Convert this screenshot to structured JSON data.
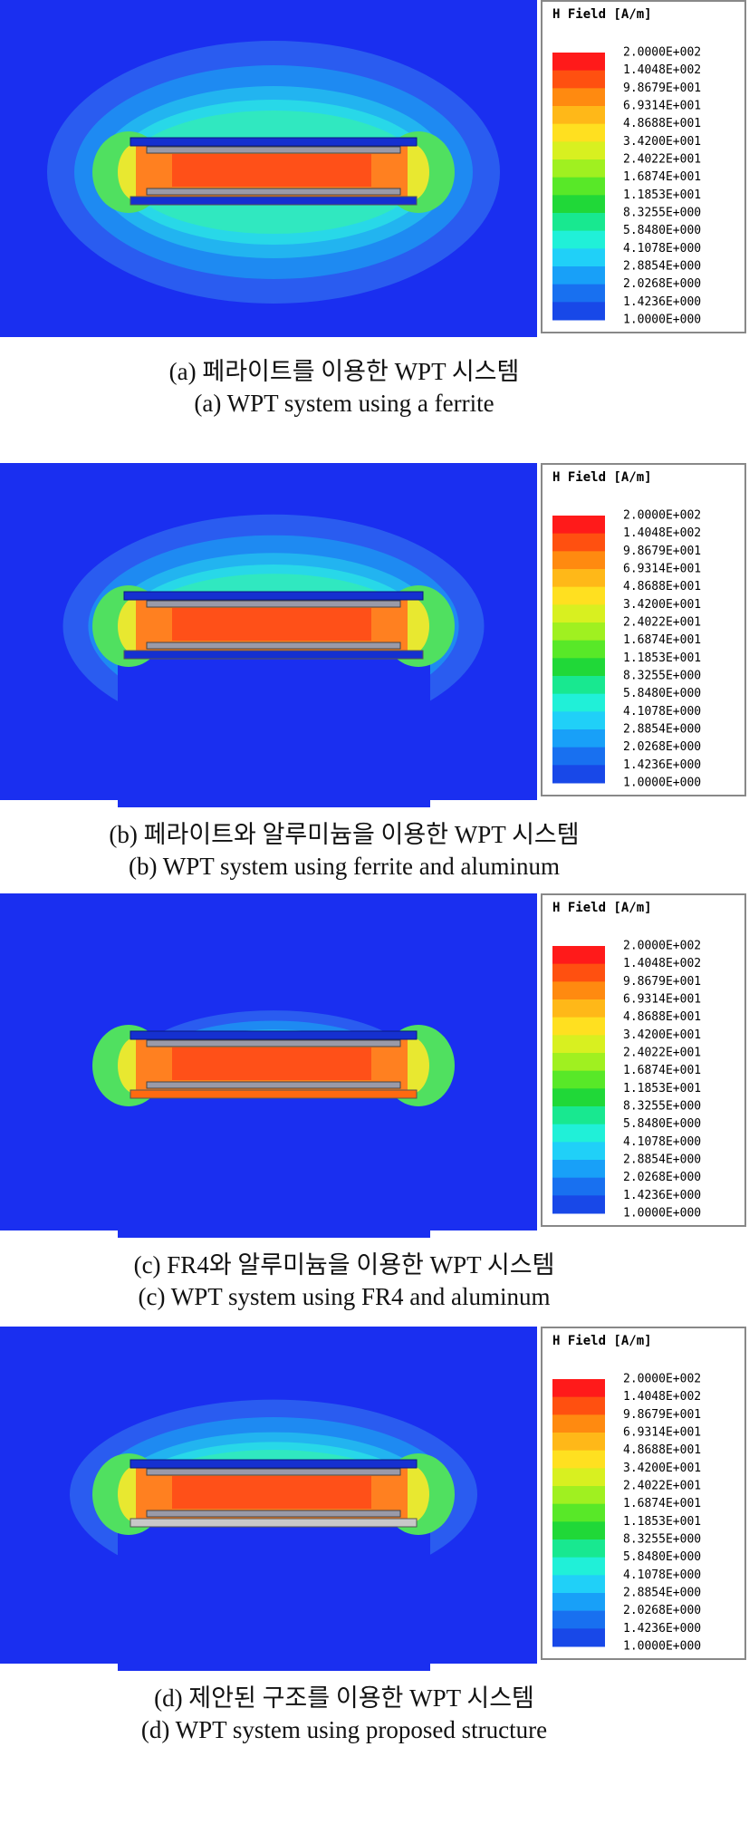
{
  "legend": {
    "title": "H Field [A/m]",
    "labels": [
      "2.0000E+002",
      "1.4048E+002",
      "9.8679E+001",
      "6.9314E+001",
      "4.8688E+001",
      "3.4200E+001",
      "2.4022E+001",
      "1.6874E+001",
      "1.1853E+001",
      "8.3255E+000",
      "5.8480E+000",
      "4.1078E+000",
      "2.8854E+000",
      "2.0268E+000",
      "1.4236E+000",
      "1.0000E+000"
    ]
  },
  "panels": [
    {
      "caption_ko": "(a) 페라이트를 이용한 WPT 시스템",
      "caption_en": "(a) WPT system using a ferrite"
    },
    {
      "caption_ko": "(b) 페라이트와 알루미늄을 이용한 WPT 시스템",
      "caption_en": "(b) WPT system using ferrite and aluminum"
    },
    {
      "caption_ko": "(c) FR4와 알루미늄을 이용한 WPT 시스템",
      "caption_en": "(c) WPT system using FR4 and aluminum"
    },
    {
      "caption_ko": "(d) 제안된 구조를 이용한 WPT 시스템",
      "caption_en": "(d) WPT system using proposed structure"
    }
  ]
}
